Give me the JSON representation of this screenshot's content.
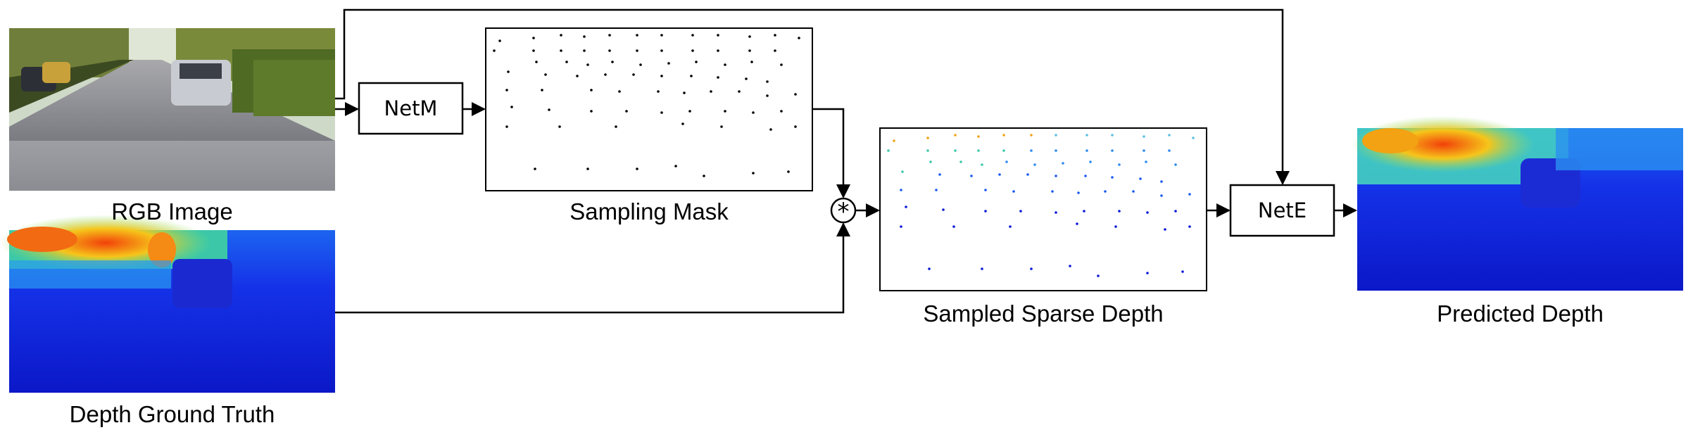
{
  "labels": {
    "rgb_image": "RGB Image",
    "depth_gt": "Depth Ground Truth",
    "sampling_mask": "Sampling Mask",
    "sampled_sparse": "Sampled Sparse Depth",
    "predicted_depth": "Predicted Depth"
  },
  "nodes": {
    "netm": "NetM",
    "nete": "NetE",
    "multiply_symbol": "*"
  },
  "colors": {
    "line": "#000000",
    "depth_near": "#f2410a",
    "depth_mid": "#f6d21a",
    "depth_far": "#0b18d8",
    "sky": "#e8f0f4"
  }
}
